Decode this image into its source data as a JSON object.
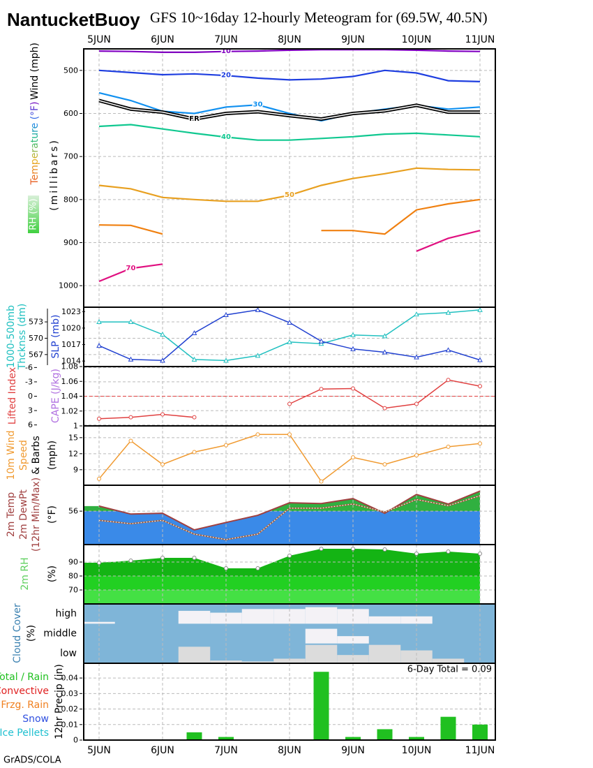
{
  "title": "NantucketBuoy",
  "subtitle": "GFS 10~16day 12-hourly Meteogram for (69.5W, 40.5N)",
  "credit": "GrADS/COLA",
  "chart_data": [
    {
      "type": "contour",
      "categories": [
        "5JUN",
        null,
        "6JUN",
        null,
        "7JUN",
        null,
        "8JUN",
        null,
        "9JUN",
        null,
        "10JUN",
        null,
        "11JUN"
      ],
      "ylabel_wind": "Wind (mph)",
      "ylabel_temp": "Temperature (°F)",
      "ylabel_rh": "RH (%)",
      "ylabel": "(millibars)",
      "ylim": [
        1050,
        450
      ],
      "yticks": [
        500,
        600,
        700,
        800,
        900,
        1000
      ],
      "grid": true,
      "series": [
        {
          "name": "10",
          "color": "#8000c0",
          "values": [
            455,
            456,
            458,
            458,
            456,
            455,
            453,
            452,
            452,
            452,
            453,
            455,
            456
          ]
        },
        {
          "name": "20",
          "color": "#1e3ee0",
          "values": [
            500,
            505,
            510,
            508,
            512,
            518,
            522,
            520,
            514,
            500,
            506,
            524,
            526
          ]
        },
        {
          "name": "30",
          "color": "#1090f0",
          "values": [
            552,
            570,
            595,
            600,
            585,
            580,
            600,
            617,
            600,
            590,
            581,
            590,
            585
          ]
        },
        {
          "name": "FR",
          "color": "#000000",
          "values": [
            570,
            590,
            597,
            613,
            600,
            596,
            605,
            613,
            600,
            594,
            581,
            597,
            597
          ]
        },
        {
          "name": "40",
          "color": "#10c890",
          "values": [
            630,
            626,
            636,
            646,
            655,
            662,
            662,
            658,
            654,
            648,
            646,
            650,
            654
          ]
        },
        {
          "name": "50",
          "color": "#e8a020",
          "values": [
            767,
            775,
            795,
            800,
            804,
            804,
            790,
            767,
            751,
            740,
            727,
            730,
            731
          ]
        },
        {
          "color": "#f08010",
          "values": [
            859,
            860,
            880,
            null,
            null,
            null,
            null,
            872,
            872,
            880,
            824,
            810,
            800
          ]
        },
        {
          "name": "70",
          "color": "#e01080",
          "values": [
            990,
            960,
            950,
            null,
            null,
            null,
            null,
            null,
            null,
            null,
            920,
            890,
            872
          ]
        }
      ]
    },
    {
      "type": "line",
      "ylabel": [
        "1000-500mb",
        "Thcknss (dm)"
      ],
      "y2label": "SLP (mb)",
      "ylim": [
        564.8,
        575.7
      ],
      "yticks": [
        567,
        570,
        573
      ],
      "y2lim": [
        1013,
        1023.8
      ],
      "y2ticks": [
        1014,
        1017,
        1020,
        1023
      ],
      "grid": true,
      "series": [
        {
          "color": "#20c0c0",
          "values": [
            573,
            573,
            570.7,
            566.1,
            565.9,
            566.8,
            569.3,
            569,
            570.6,
            570.4,
            574.4,
            574.7,
            575.2
          ]
        },
        {
          "color": "#2040d0",
          "axis": "y2",
          "values": [
            1016.8,
            1014.3,
            1014.1,
            1019.1,
            1022.4,
            1023.3,
            1021,
            1017.6,
            1016.2,
            1015.6,
            1014.7,
            1016,
            1014.2
          ]
        }
      ]
    },
    {
      "type": "line",
      "ylabel": [
        "Lifted Index"
      ],
      "y2label": "CAPE (J/kg)",
      "ylim": [
        6.2,
        -6.2
      ],
      "yticks": [
        -6,
        -3,
        0,
        3,
        6
      ],
      "y2lim": [
        1,
        1.08
      ],
      "y2ticks": [
        1,
        1.02,
        1.04,
        1.06,
        1.08
      ],
      "grid": true,
      "ref_line": 0,
      "series": [
        {
          "color": "#e04040",
          "values": [
            4.7,
            4.4,
            3.8,
            4.4,
            null,
            null,
            1.6,
            -1.5,
            -1.6,
            2.5,
            1.6,
            -3.4,
            -2.1
          ]
        }
      ]
    },
    {
      "type": "line",
      "ylabel": [
        "10m Wind",
        "Speed",
        "& Barbs",
        "(mph)"
      ],
      "ylim": [
        6.1,
        17.2
      ],
      "yticks": [
        9,
        12,
        15
      ],
      "grid": true,
      "series": [
        {
          "color": "#f09a30",
          "values": [
            7.3,
            14.4,
            10,
            12.3,
            13.6,
            15.6,
            15.6,
            6.8,
            11.3,
            10,
            11.7,
            13.3,
            13.9
          ]
        }
      ]
    },
    {
      "type": "temp",
      "ylabel": [
        "2m Temp",
        "2m DewPt",
        "(12hr Min/Max)",
        "(°F)"
      ],
      "ylim": [
        48,
        62.2
      ],
      "yticks": [
        56
      ],
      "grid": true,
      "series": [
        {
          "color": "#a04040",
          "values": [
            57.2,
            55.3,
            55.5,
            51.5,
            53.3,
            55,
            58,
            57.8,
            59,
            55.5,
            60,
            57.7,
            60.8
          ]
        },
        {
          "color": "#a06040",
          "values": [
            53.8,
            53,
            53.8,
            50.5,
            49.2,
            50.5,
            56.7,
            56.7,
            57.7,
            55.8,
            58.8,
            57.3,
            59.7
          ]
        }
      ]
    },
    {
      "type": "area",
      "ylabel": [
        "2m RH",
        "(%)"
      ],
      "ylim": [
        60,
        102.5
      ],
      "yticks": [
        70,
        80,
        90
      ],
      "grid": true,
      "values": [
        89.5,
        91,
        93,
        93,
        85.5,
        85.5,
        94.5,
        99.5,
        99.5,
        99,
        96,
        97.5,
        96
      ]
    },
    {
      "type": "cloud",
      "ylabel": [
        "Cloud Cover",
        "(%)"
      ],
      "rows": [
        "high",
        "middle",
        "low"
      ],
      "series": [
        {
          "color": "#f4f2f6",
          "values": [
            10,
            0,
            0,
            70,
            60,
            80,
            80,
            90,
            80,
            40,
            40,
            0,
            0
          ]
        },
        {
          "color": "#f4f2f6",
          "values": [
            0,
            0,
            0,
            0,
            0,
            0,
            0,
            80,
            40,
            0,
            0,
            0,
            0
          ]
        },
        {
          "color": "#dcdcdc",
          "values": [
            0,
            0,
            0,
            90,
            15,
            10,
            25,
            100,
            45,
            100,
            70,
            25,
            0
          ]
        }
      ]
    },
    {
      "type": "bar",
      "categories": [
        "5JUN",
        null,
        "6JUN",
        null,
        "7JUN",
        null,
        "8JUN",
        null,
        "9JUN",
        null,
        "10JUN",
        null,
        "11JUN"
      ],
      "ylabel": [
        "12hr Precip (in)"
      ],
      "legend": [
        {
          "name": "Total / Rain",
          "color": "#20c020"
        },
        {
          "name": "Convective",
          "color": "#e02020"
        },
        {
          "name": "Frzg. Rain",
          "color": "#f08020"
        },
        {
          "name": "Snow",
          "color": "#3050e0"
        },
        {
          "name": "Ice Pellets",
          "color": "#20c0d0"
        }
      ],
      "annotation": "6-Day Total = 0.09",
      "ylim": [
        0,
        0.0495
      ],
      "yticks": [
        0,
        0.01,
        0.02,
        0.03,
        0.04
      ],
      "grid": true,
      "color": "#20c020",
      "values": [
        0,
        0,
        0,
        0.005,
        0.002,
        0,
        0,
        0.044,
        0.002,
        0.007,
        0.002,
        0.015,
        0.01
      ]
    }
  ]
}
